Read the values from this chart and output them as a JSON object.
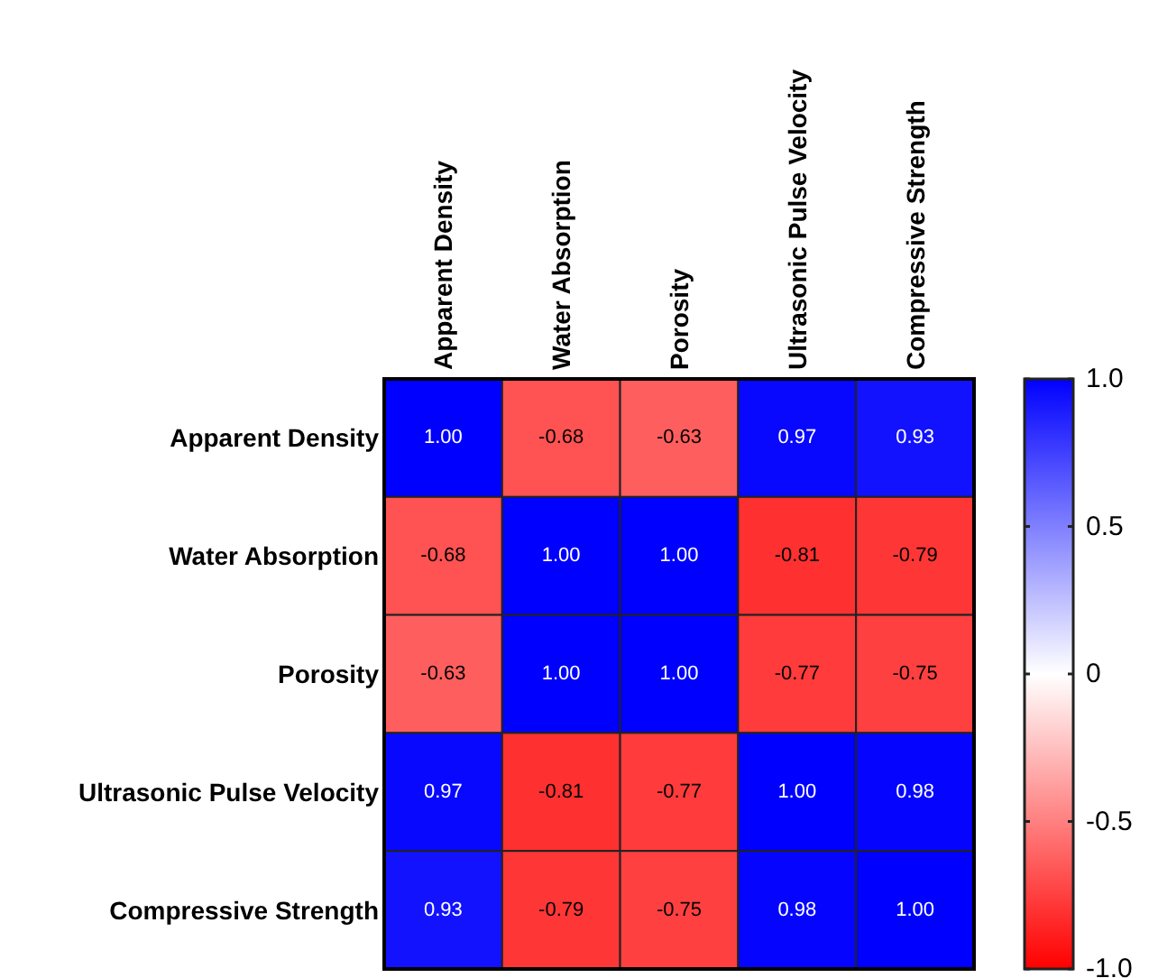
{
  "chart_data": {
    "type": "heatmap",
    "categories": [
      "Apparent Density",
      "Water Absorption",
      "Porosity",
      "Ultrasonic Pulse Velocity",
      "Compressive Strength"
    ],
    "y_categories": [
      "Apparent Density",
      "Water Absorption",
      "Porosity",
      "Ultrasonic Pulse Velocity",
      "Compressive Strength"
    ],
    "cells": [
      [
        1,
        -0.68,
        -0.63,
        0.97,
        0.93
      ],
      [
        -0.68,
        1,
        1,
        -0.81,
        -0.79
      ],
      [
        -0.63,
        1,
        1,
        -0.77,
        -0.75
      ],
      [
        0.97,
        -0.81,
        -0.77,
        1,
        0.98
      ],
      [
        0.93,
        -0.79,
        -0.75,
        0.98,
        1
      ]
    ],
    "cell_labels": [
      [
        "1.00",
        "-0.68",
        "-0.63",
        "0.97",
        "0.93"
      ],
      [
        "-0.68",
        "1.00",
        "1.00",
        "-0.81",
        "-0.79"
      ],
      [
        "-0.63",
        "1.00",
        "1.00",
        "-0.77",
        "-0.75"
      ],
      [
        "0.97",
        "-0.81",
        "-0.77",
        "1.00",
        "0.98"
      ],
      [
        "0.93",
        "-0.79",
        "-0.75",
        "0.98",
        "1.00"
      ]
    ],
    "clim": [
      -1,
      1
    ],
    "cticks": [
      {
        "value": 1,
        "label": "1.0"
      },
      0.5,
      0,
      -0.5,
      {
        "value": -1,
        "label": "-1.0"
      }
    ],
    "colors": [
      "#ff0000",
      "#ffffff",
      "#0000ff"
    ]
  }
}
